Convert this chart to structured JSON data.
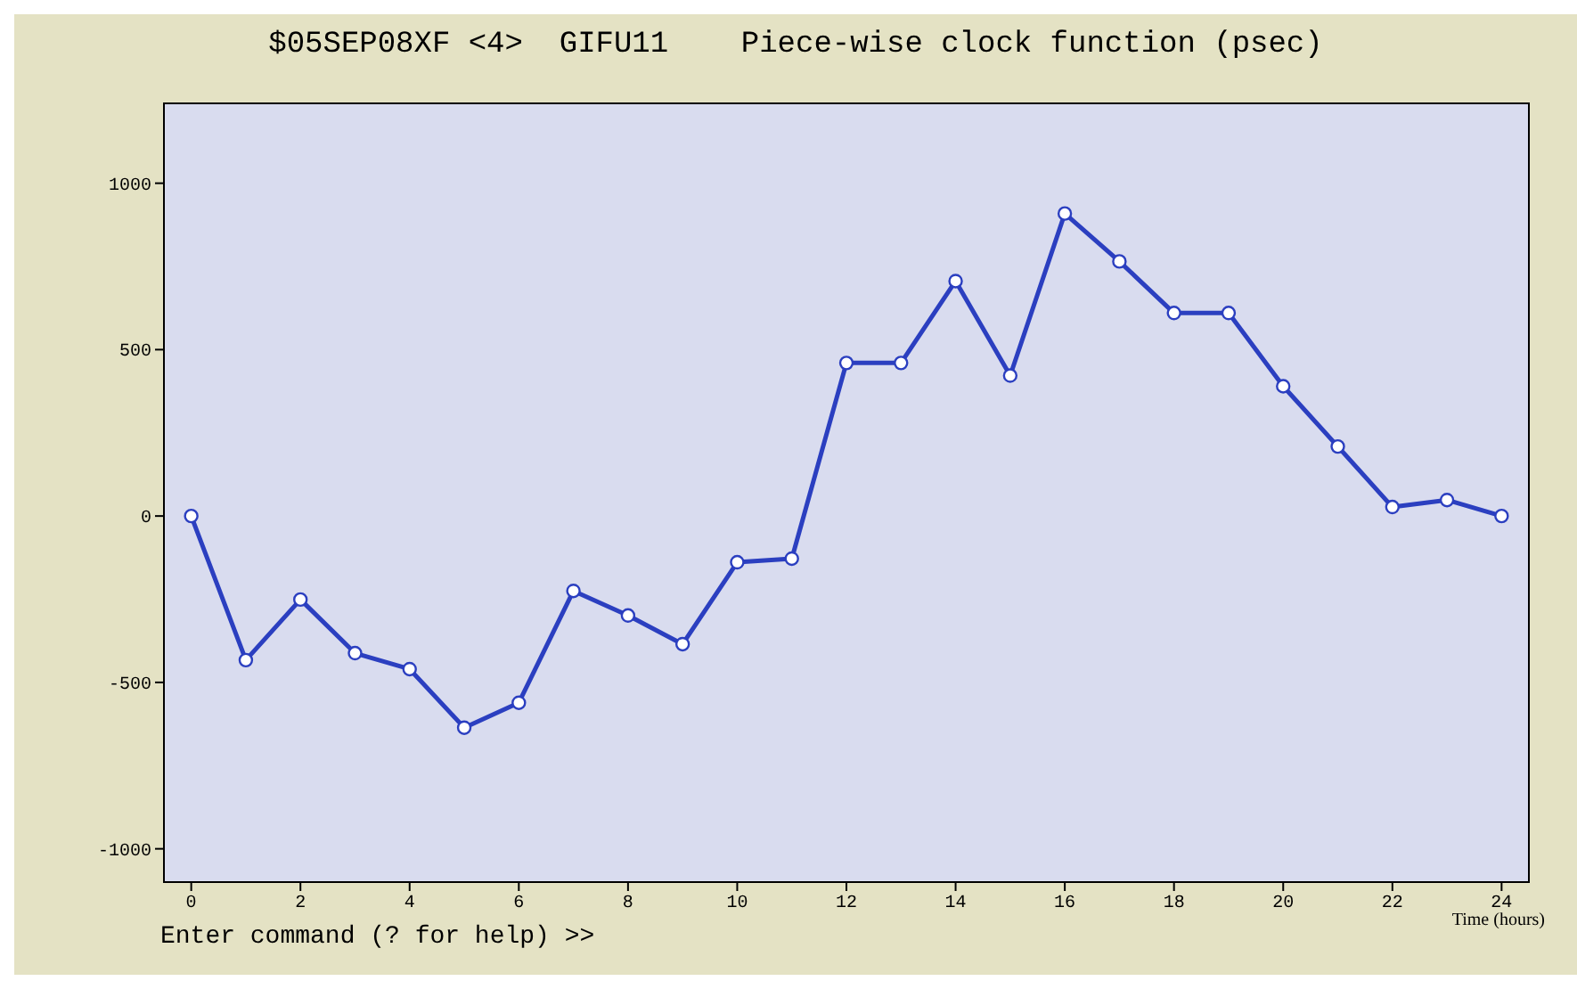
{
  "chart_data": {
    "type": "line",
    "title": "$05SEP08XF <4>  GIFU11    Piece-wise clock function (psec)",
    "xlabel": "Time (hours)",
    "annotations": [
      "Enter command (? for help) >>"
    ],
    "x": [
      0,
      1,
      2,
      3,
      4,
      5,
      6,
      7,
      8,
      9,
      10,
      11,
      12,
      13,
      14,
      15,
      16,
      17,
      18,
      19,
      20,
      21,
      22,
      23,
      24
    ],
    "series": [
      {
        "color": "#2b3fc0",
        "values": [
          0,
          -433,
          -251,
          -412,
          -460,
          -636,
          -561,
          -225,
          -299,
          -385,
          -139,
          -128,
          460,
          460,
          706,
          422,
          909,
          765,
          610,
          610,
          390,
          209,
          27,
          48,
          0
        ]
      }
    ],
    "xlim": [
      -0.5,
      24.5
    ],
    "xticks": [
      0,
      2,
      4,
      6,
      8,
      10,
      12,
      14,
      16,
      18,
      20,
      22,
      24
    ],
    "ylim": [
      -1100,
      1240
    ],
    "yticks": [
      -1000,
      -500,
      0,
      500,
      1000
    ],
    "legend": false,
    "marker": "circle",
    "line_style": "solid"
  }
}
